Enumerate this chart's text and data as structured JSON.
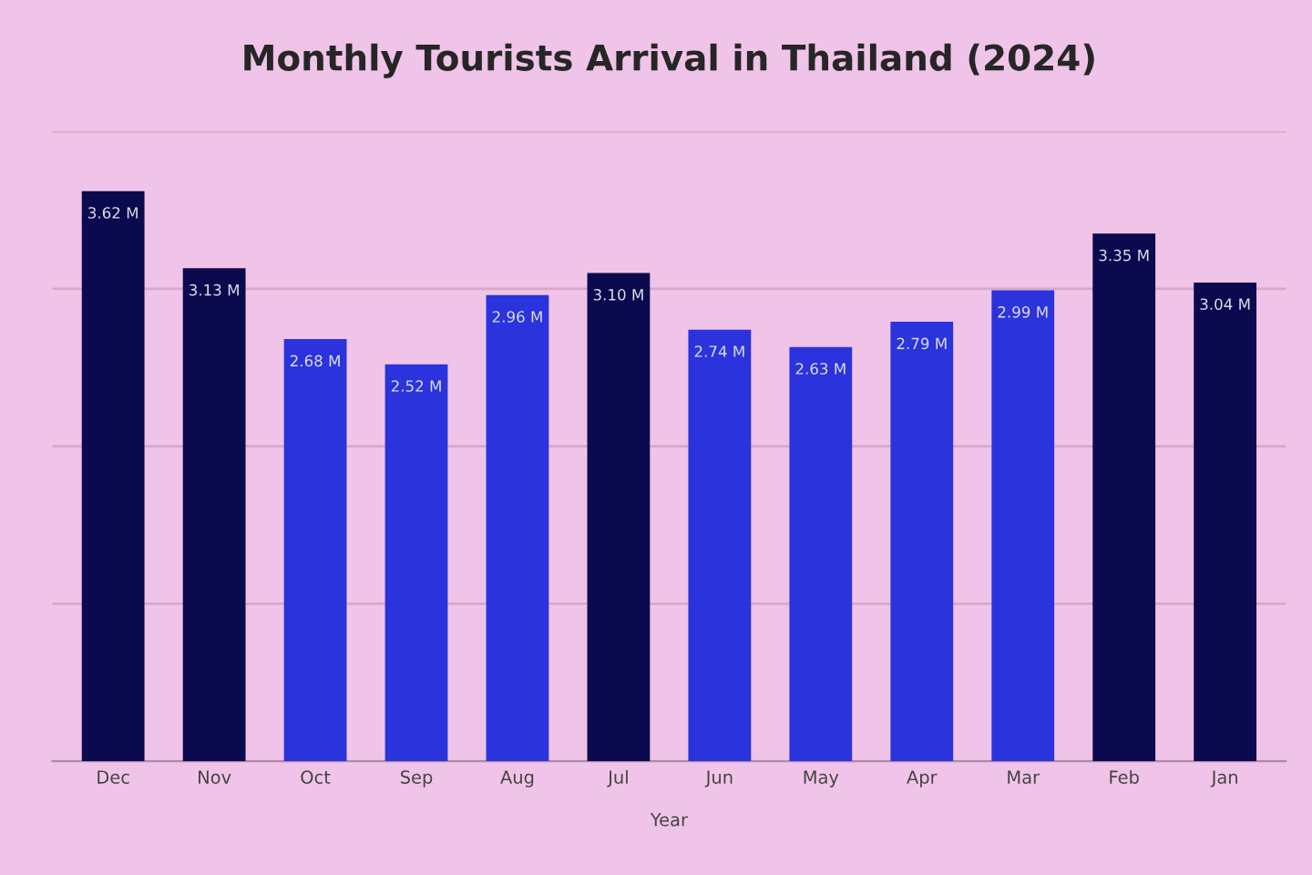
{
  "chart_data": {
    "type": "bar",
    "title": "Monthly Tourists Arrival in Thailand (2024)",
    "xlabel": "Year",
    "categories": [
      "Dec",
      "Nov",
      "Oct",
      "Sep",
      "Aug",
      "Jul",
      "Jun",
      "May",
      "Apr",
      "Mar",
      "Feb",
      "Jan"
    ],
    "values": [
      3.62,
      3.13,
      2.68,
      2.52,
      2.96,
      3.1,
      2.74,
      2.63,
      2.79,
      2.99,
      3.35,
      3.04
    ],
    "value_labels": [
      "3.62 M",
      "3.13 M",
      "2.68 M",
      "2.52 M",
      "2.96 M",
      "3.10 M",
      "2.74 M",
      "2.63 M",
      "2.79 M",
      "2.99 M",
      "3.35 M",
      "3.04 M"
    ],
    "colors": [
      "#0b0a4e",
      "#0b0a4e",
      "#2a33dc",
      "#2a33dc",
      "#2a33dc",
      "#0b0a4e",
      "#2a33dc",
      "#2a33dc",
      "#2a33dc",
      "#2a33dc",
      "#0b0a4e",
      "#0b0a4e"
    ],
    "ylim": [
      0,
      4
    ],
    "yticks": [
      {
        "value": 0,
        "label": null
      },
      {
        "value": 1,
        "label": null
      },
      {
        "value": 2,
        "label": null
      },
      {
        "value": 3,
        "label": null
      },
      {
        "value": 4,
        "label": null
      }
    ],
    "grid": "y",
    "tick_labels": "x"
  }
}
